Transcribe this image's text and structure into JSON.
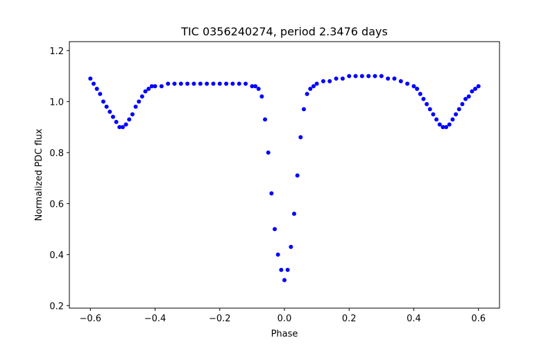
{
  "chart_data": {
    "type": "scatter",
    "title": "TIC 0356240274, period 2.3476 days",
    "xlabel": "Phase",
    "ylabel": "Normalized PDC flux",
    "xlim": [
      -0.665,
      0.665
    ],
    "ylim": [
      0.19,
      1.235
    ],
    "xticks": [
      -0.6,
      -0.4,
      -0.2,
      0.0,
      0.2,
      0.4,
      0.6
    ],
    "xtick_labels": [
      "−0.6",
      "−0.4",
      "−0.2",
      "0.0",
      "0.2",
      "0.4",
      "0.6"
    ],
    "yticks": [
      0.2,
      0.4,
      0.6,
      0.8,
      1.0,
      1.2
    ],
    "ytick_labels": [
      "0.2",
      "0.4",
      "0.6",
      "0.8",
      "1.0",
      "1.2"
    ],
    "grid": false,
    "marker_color": "#0000ff",
    "series": [
      {
        "x": [
          -0.6,
          -0.59,
          -0.58,
          -0.57,
          -0.56,
          -0.55,
          -0.54,
          -0.53,
          -0.52,
          -0.51,
          -0.5,
          -0.49,
          -0.48,
          -0.47,
          -0.46,
          -0.45,
          -0.44,
          -0.43,
          -0.42,
          -0.41,
          -0.4,
          -0.38,
          -0.36,
          -0.34,
          -0.32,
          -0.3,
          -0.28,
          -0.26,
          -0.24,
          -0.22,
          -0.2,
          -0.18,
          -0.16,
          -0.14,
          -0.12,
          -0.1,
          -0.09,
          -0.08,
          -0.07,
          -0.06,
          -0.05,
          -0.04,
          -0.03,
          -0.02,
          -0.01,
          0.0,
          0.01,
          0.02,
          0.03,
          0.04,
          0.05,
          0.06,
          0.07,
          0.08,
          0.09,
          0.1,
          0.12,
          0.14,
          0.16,
          0.18,
          0.2,
          0.22,
          0.24,
          0.26,
          0.28,
          0.3,
          0.32,
          0.34,
          0.36,
          0.38,
          0.4,
          0.41,
          0.42,
          0.43,
          0.44,
          0.45,
          0.46,
          0.47,
          0.48,
          0.49,
          0.5,
          0.51,
          0.52,
          0.53,
          0.54,
          0.55,
          0.56,
          0.57,
          0.58,
          0.59,
          0.6
        ],
        "y": [
          1.09,
          1.07,
          1.05,
          1.03,
          1.0,
          0.98,
          0.96,
          0.94,
          0.92,
          0.9,
          0.9,
          0.91,
          0.93,
          0.95,
          0.98,
          1.0,
          1.02,
          1.04,
          1.05,
          1.06,
          1.06,
          1.06,
          1.07,
          1.07,
          1.07,
          1.07,
          1.07,
          1.07,
          1.07,
          1.07,
          1.07,
          1.07,
          1.07,
          1.07,
          1.07,
          1.06,
          1.06,
          1.05,
          1.02,
          0.93,
          0.8,
          0.64,
          0.5,
          0.4,
          0.34,
          0.3,
          0.34,
          0.43,
          0.56,
          0.71,
          0.86,
          0.97,
          1.03,
          1.05,
          1.06,
          1.07,
          1.08,
          1.08,
          1.09,
          1.09,
          1.1,
          1.1,
          1.1,
          1.1,
          1.1,
          1.1,
          1.09,
          1.09,
          1.08,
          1.07,
          1.06,
          1.05,
          1.03,
          1.01,
          0.99,
          0.97,
          0.95,
          0.93,
          0.91,
          0.9,
          0.9,
          0.91,
          0.93,
          0.95,
          0.97,
          0.99,
          1.01,
          1.02,
          1.04,
          1.05,
          1.06
        ]
      }
    ]
  }
}
